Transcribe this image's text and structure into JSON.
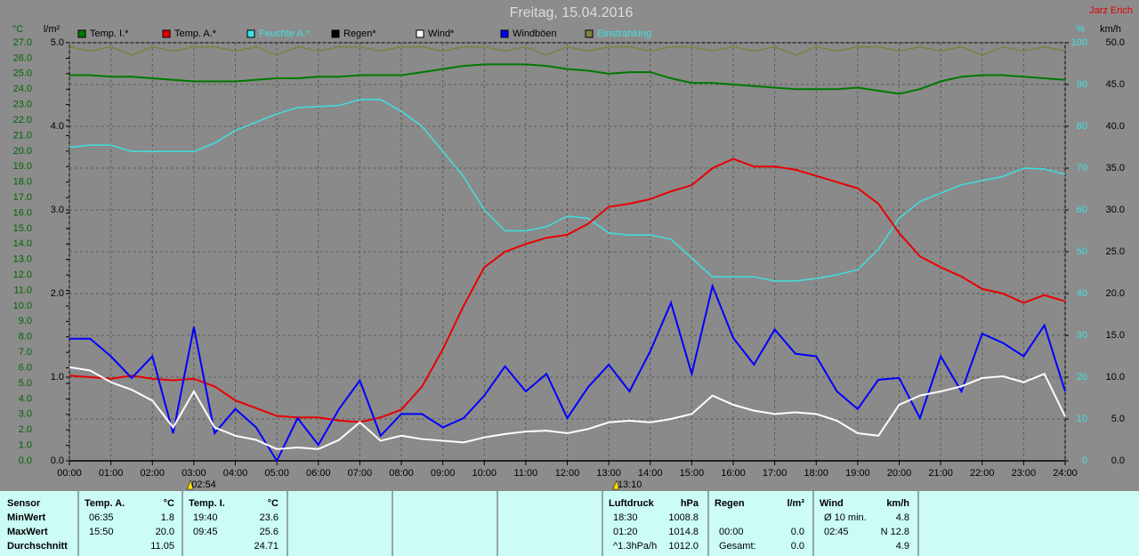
{
  "chart_data": {
    "type": "line",
    "title": "Freitag, 15.04.2016",
    "author": "Jarz Erich",
    "x": [
      0,
      0.5,
      1,
      1.5,
      2,
      2.5,
      3,
      3.5,
      4,
      4.5,
      5,
      5.5,
      6,
      6.5,
      7,
      7.5,
      8,
      8.5,
      9,
      9.5,
      10,
      10.5,
      11,
      11.5,
      12,
      12.5,
      13,
      13.5,
      14,
      14.5,
      15,
      15.5,
      16,
      16.5,
      17,
      17.5,
      18,
      18.5,
      19,
      19.5,
      20,
      20.5,
      21,
      21.5,
      22,
      22.5,
      23,
      23.5,
      24
    ],
    "xlim": [
      0,
      24
    ],
    "xticks": [
      {
        "value": 0,
        "label": "00:00"
      },
      {
        "value": 1,
        "label": "01:00"
      },
      {
        "value": 2,
        "label": "02:00"
      },
      {
        "value": 3,
        "label": "03:00"
      },
      {
        "value": 4,
        "label": "04:00"
      },
      {
        "value": 5,
        "label": "05:00"
      },
      {
        "value": 6,
        "label": "06:00"
      },
      {
        "value": 7,
        "label": "07:00"
      },
      {
        "value": 8,
        "label": "08:00"
      },
      {
        "value": 9,
        "label": "09:00"
      },
      {
        "value": 10,
        "label": "10:00"
      },
      {
        "value": 11,
        "label": "11:00"
      },
      {
        "value": 12,
        "label": "12:00"
      },
      {
        "value": 13,
        "label": "13:00"
      },
      {
        "value": 14,
        "label": "14:00"
      },
      {
        "value": 15,
        "label": "15:00"
      },
      {
        "value": 16,
        "label": "16:00"
      },
      {
        "value": 17,
        "label": "17:00"
      },
      {
        "value": 18,
        "label": "18:00"
      },
      {
        "value": 19,
        "label": "19:00"
      },
      {
        "value": 20,
        "label": "20:00"
      },
      {
        "value": 21,
        "label": "21:00"
      },
      {
        "value": 22,
        "label": "22:00"
      },
      {
        "value": 23,
        "label": "23:00"
      },
      {
        "value": 24,
        "label": "24:00"
      }
    ],
    "grid": true,
    "axes": [
      {
        "label": "°C",
        "color": "#006400",
        "lim": [
          0,
          27
        ],
        "ticks": [
          {
            "value": 0,
            "label": "0.0"
          },
          {
            "value": 1,
            "label": "1.0"
          },
          {
            "value": 2,
            "label": "2.0"
          },
          {
            "value": 3,
            "label": "3.0"
          },
          {
            "value": 4,
            "label": "4.0"
          },
          {
            "value": 5,
            "label": "5.0"
          },
          {
            "value": 6,
            "label": "6.0"
          },
          {
            "value": 7,
            "label": "7.0"
          },
          {
            "value": 8,
            "label": "8.0"
          },
          {
            "value": 9,
            "label": "9.0"
          },
          {
            "value": 10,
            "label": "10.0"
          },
          {
            "value": 11,
            "label": "11.0"
          },
          {
            "value": 12,
            "label": "12.0"
          },
          {
            "value": 13,
            "label": "13.0"
          },
          {
            "value": 14,
            "label": "14.0"
          },
          {
            "value": 15,
            "label": "15.0"
          },
          {
            "value": 16,
            "label": "16.0"
          },
          {
            "value": 17,
            "label": "17.0"
          },
          {
            "value": 18,
            "label": "18.0"
          },
          {
            "value": 19,
            "label": "19.0"
          },
          {
            "value": 20,
            "label": "20.0"
          },
          {
            "value": 21,
            "label": "21.0"
          },
          {
            "value": 22,
            "label": "22.0"
          },
          {
            "value": 23,
            "label": "23.0"
          },
          {
            "value": 24,
            "label": "24.0"
          },
          {
            "value": 25,
            "label": "25.0"
          },
          {
            "value": 26,
            "label": "26.0"
          },
          {
            "value": 27,
            "label": "27.0"
          }
        ]
      },
      {
        "label": "l/m²",
        "color": "#000000",
        "lim": [
          0,
          5
        ],
        "ticks": [
          {
            "value": 0,
            "label": "0.0"
          },
          {
            "value": 1,
            "label": "1.0"
          },
          {
            "value": 2,
            "label": "2.0"
          },
          {
            "value": 3,
            "label": "3.0"
          },
          {
            "value": 4,
            "label": "4.0"
          },
          {
            "value": 5,
            "label": "5.0"
          }
        ]
      },
      {
        "label": "%",
        "color": "#40e0e0",
        "lim": [
          0,
          100
        ],
        "ticks": [
          0,
          10,
          20,
          30,
          40,
          50,
          60,
          70,
          80,
          90,
          100
        ]
      },
      {
        "label": "km/h",
        "color": "#000000",
        "lim": [
          0,
          50
        ],
        "ticks": [
          {
            "value": 0,
            "label": "0.0"
          },
          {
            "value": 5,
            "label": "5.0"
          },
          {
            "value": 10,
            "label": "10.0"
          },
          {
            "value": 15,
            "label": "15.0"
          },
          {
            "value": 20,
            "label": "20.0"
          },
          {
            "value": 25,
            "label": "25.0"
          },
          {
            "value": 30,
            "label": "30.0"
          },
          {
            "value": 35,
            "label": "35.0"
          },
          {
            "value": 40,
            "label": "40.0"
          },
          {
            "value": 45,
            "label": "45.0"
          },
          {
            "value": 50,
            "label": "50.0"
          }
        ]
      }
    ],
    "series": [
      {
        "name": "Temp. I.*",
        "color": "#007800",
        "axis": 0,
        "values": [
          24.9,
          24.9,
          24.8,
          24.8,
          24.7,
          24.6,
          24.5,
          24.5,
          24.5,
          24.6,
          24.7,
          24.7,
          24.8,
          24.8,
          24.9,
          24.9,
          24.9,
          25.1,
          25.3,
          25.5,
          25.6,
          25.6,
          25.6,
          25.5,
          25.3,
          25.2,
          25.0,
          25.1,
          25.1,
          24.7,
          24.4,
          24.4,
          24.3,
          24.2,
          24.1,
          24.0,
          24.0,
          24.0,
          24.1,
          23.9,
          23.7,
          24.0,
          24.5,
          24.8,
          24.9,
          24.9,
          24.8,
          24.7,
          24.6
        ]
      },
      {
        "name": "Temp. A.*",
        "color": "#e80000",
        "axis": 0,
        "values": [
          5.5,
          5.4,
          5.3,
          5.5,
          5.3,
          5.2,
          5.3,
          4.8,
          3.9,
          3.4,
          2.9,
          2.8,
          2.8,
          2.6,
          2.5,
          2.8,
          3.3,
          4.8,
          7.2,
          10.0,
          12.5,
          13.5,
          14.0,
          14.4,
          14.6,
          15.3,
          16.4,
          16.6,
          16.9,
          17.4,
          17.8,
          18.9,
          19.5,
          19.0,
          19.0,
          18.8,
          18.4,
          18.0,
          17.6,
          16.6,
          14.7,
          13.2,
          12.5,
          11.9,
          11.1,
          10.8,
          10.2,
          10.7,
          10.3
        ]
      },
      {
        "name": "Feuchte A.*",
        "color": "#40e0e0",
        "label_color": "#40e0e0",
        "axis": 2,
        "values": [
          75,
          75.5,
          75.5,
          74,
          74,
          74,
          74,
          76,
          79,
          81,
          83,
          84.5,
          84.7,
          85,
          86.4,
          86.4,
          83.6,
          80,
          74,
          68,
          60,
          55,
          55,
          56,
          58.5,
          58,
          54.5,
          54,
          54,
          53,
          48.5,
          44,
          44,
          44,
          43,
          43,
          43.6,
          44.5,
          45.7,
          50.6,
          58,
          62,
          64,
          66,
          67,
          68,
          70,
          69.8,
          68.5
        ]
      },
      {
        "name": "Regen*",
        "color": "#000000",
        "axis": 1,
        "values": [
          0,
          0,
          0,
          0,
          0,
          0,
          0,
          0,
          0,
          0,
          0,
          0,
          0,
          0,
          0,
          0,
          0,
          0,
          0,
          0,
          0,
          0,
          0,
          0,
          0,
          0,
          0,
          0,
          0,
          0,
          0,
          0,
          0,
          0,
          0,
          0,
          0,
          0,
          0,
          0,
          0,
          0,
          0,
          0,
          0,
          0,
          0,
          0,
          0
        ]
      },
      {
        "name": "Wind*",
        "color": "#ffffff",
        "axis": 3,
        "values": [
          11.2,
          10.8,
          9.4,
          8.5,
          7.2,
          4,
          8.3,
          4,
          3,
          2.5,
          1.4,
          1.6,
          1.4,
          2.5,
          4.6,
          2.4,
          3,
          2.6,
          2.4,
          2.2,
          2.8,
          3.2,
          3.5,
          3.6,
          3.3,
          3.8,
          4.6,
          4.8,
          4.6,
          5.0,
          5.6,
          7.8,
          6.7,
          6.0,
          5.6,
          5.8,
          5.6,
          4.8,
          3.3,
          3.0,
          6.7,
          7.8,
          8.3,
          8.9,
          9.9,
          10.1,
          9.4,
          10.4,
          5.3
        ]
      },
      {
        "name": "Windböen",
        "color": "#0000ff",
        "axis": 3,
        "values": [
          14.6,
          14.6,
          12.5,
          9.9,
          12.5,
          3.3,
          16,
          3.3,
          6.2,
          4,
          0,
          5.1,
          1.9,
          6.2,
          9.6,
          3,
          5.6,
          5.6,
          4,
          5.1,
          7.8,
          11.3,
          8.3,
          10.4,
          5.1,
          8.8,
          11.5,
          8.3,
          13.1,
          18.9,
          10.4,
          20.9,
          14.7,
          11.5,
          15.7,
          12.8,
          12.5,
          8.3,
          6.2,
          9.7,
          9.9,
          5.1,
          12.5,
          8.3,
          15.2,
          14.1,
          12.5,
          16.2,
          8.3
        ]
      },
      {
        "name": "Einstrahlung",
        "color": "#808040",
        "label_color": "#40e0e0",
        "axis": 2,
        "values": [
          99,
          98,
          99,
          97,
          99,
          98,
          99,
          99,
          98,
          99,
          97,
          99,
          98,
          99,
          99,
          98,
          99,
          99,
          98,
          99,
          99,
          98,
          99,
          97,
          99,
          98,
          99,
          99,
          98,
          99,
          99,
          98,
          99,
          98,
          99,
          97,
          99,
          98,
          99,
          99,
          98,
          99,
          98,
          99,
          97,
          99,
          98,
          99,
          98
        ]
      }
    ],
    "annotations": [
      {
        "x": 2.9,
        "label": "02:54"
      },
      {
        "x": 13.1667,
        "label": "13:10"
      }
    ]
  },
  "stats_table": {
    "row_labels": [
      "Sensor",
      "MinWert",
      "MaxWert",
      "Durchschnitt"
    ],
    "columns": [
      {
        "name": "Temp. A.",
        "unit": "°C",
        "rows": [
          [
            "06:35",
            "1.8"
          ],
          [
            "15:50",
            "20.0"
          ],
          [
            "11.05"
          ]
        ]
      },
      {
        "name": "Temp. I.",
        "unit": "°C",
        "rows": [
          [
            "19:40",
            "23.6"
          ],
          [
            "09:45",
            "25.6"
          ],
          [
            "24.71"
          ]
        ]
      },
      {
        "name": "Luftdruck",
        "unit": "hPa",
        "rows": [
          [
            "18:30",
            "1008.8"
          ],
          [
            "01:20",
            "1014.8"
          ],
          [
            "^1.3hPa/h",
            "1012.0"
          ]
        ]
      },
      {
        "name": "Regen",
        "unit": "l/m²",
        "rows": [
          [],
          [
            "00:00",
            "0.0"
          ],
          [
            "Gesamt:",
            "0.0"
          ]
        ]
      },
      {
        "name": "Wind",
        "unit": "km/h",
        "rows": [
          [
            "Ø 10 min.",
            "4.8"
          ],
          [
            "02:45",
            "N 12.8"
          ],
          [
            "4.9"
          ]
        ]
      }
    ]
  }
}
